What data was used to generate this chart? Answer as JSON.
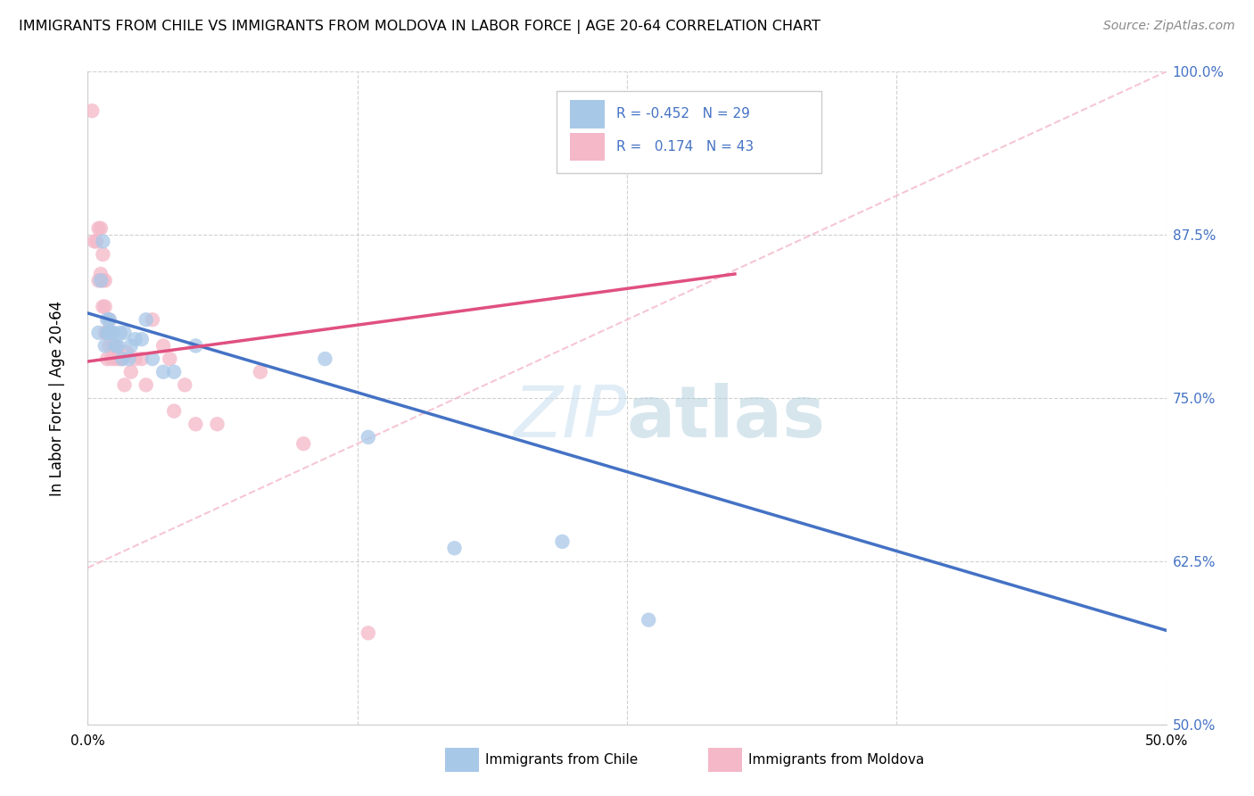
{
  "title": "IMMIGRANTS FROM CHILE VS IMMIGRANTS FROM MOLDOVA IN LABOR FORCE | AGE 20-64 CORRELATION CHART",
  "source": "Source: ZipAtlas.com",
  "ylabel": "In Labor Force | Age 20-64",
  "xlim": [
    0.0,
    0.5
  ],
  "ylim": [
    0.5,
    1.0
  ],
  "ytick_labels": [
    "50.0%",
    "62.5%",
    "75.0%",
    "87.5%",
    "100.0%"
  ],
  "ytick_values": [
    0.5,
    0.625,
    0.75,
    0.875,
    1.0
  ],
  "xtick_labels": [
    "0.0%",
    "",
    "",
    "",
    "50.0%"
  ],
  "xtick_values": [
    0.0,
    0.125,
    0.25,
    0.375,
    0.5
  ],
  "chile_color": "#a8c8e8",
  "moldova_color": "#f4b8c8",
  "chile_line_color": "#4472c4",
  "moldova_line_color": "#e05080",
  "chile_R": -0.452,
  "chile_N": 29,
  "moldova_R": 0.174,
  "moldova_N": 43,
  "legend_color": "#4472c4",
  "right_tick_color": "#4472c4",
  "grid_color": "#cccccc",
  "background_color": "#ffffff",
  "chile_line_x0": 0.0,
  "chile_line_y0": 0.815,
  "chile_line_x1": 0.5,
  "chile_line_y1": 0.572,
  "moldova_line_x0": 0.0,
  "moldova_line_y0": 0.778,
  "moldova_line_x1": 0.3,
  "moldova_line_y1": 0.845,
  "dash_line_x0": 0.0,
  "dash_line_y0": 0.62,
  "dash_line_x1": 0.5,
  "dash_line_y1": 1.0,
  "chile_points_x": [
    0.005,
    0.006,
    0.007,
    0.008,
    0.009,
    0.009,
    0.01,
    0.01,
    0.011,
    0.012,
    0.013,
    0.014,
    0.015,
    0.016,
    0.017,
    0.019,
    0.02,
    0.022,
    0.025,
    0.027,
    0.03,
    0.035,
    0.04,
    0.05,
    0.11,
    0.13,
    0.17,
    0.22,
    0.26
  ],
  "chile_points_y": [
    0.8,
    0.84,
    0.87,
    0.79,
    0.8,
    0.81,
    0.8,
    0.81,
    0.8,
    0.8,
    0.79,
    0.79,
    0.8,
    0.78,
    0.8,
    0.78,
    0.79,
    0.795,
    0.795,
    0.81,
    0.78,
    0.77,
    0.77,
    0.79,
    0.78,
    0.72,
    0.635,
    0.64,
    0.58
  ],
  "moldova_points_x": [
    0.002,
    0.003,
    0.004,
    0.005,
    0.005,
    0.006,
    0.006,
    0.007,
    0.007,
    0.007,
    0.008,
    0.008,
    0.008,
    0.009,
    0.009,
    0.009,
    0.01,
    0.01,
    0.01,
    0.011,
    0.011,
    0.012,
    0.013,
    0.013,
    0.014,
    0.015,
    0.016,
    0.017,
    0.018,
    0.02,
    0.022,
    0.025,
    0.027,
    0.03,
    0.035,
    0.038,
    0.04,
    0.045,
    0.05,
    0.06,
    0.08,
    0.1,
    0.13
  ],
  "moldova_points_y": [
    0.97,
    0.87,
    0.87,
    0.84,
    0.88,
    0.88,
    0.845,
    0.86,
    0.84,
    0.82,
    0.84,
    0.82,
    0.8,
    0.8,
    0.8,
    0.78,
    0.81,
    0.8,
    0.79,
    0.8,
    0.78,
    0.79,
    0.79,
    0.78,
    0.785,
    0.78,
    0.78,
    0.76,
    0.785,
    0.77,
    0.78,
    0.78,
    0.76,
    0.81,
    0.79,
    0.78,
    0.74,
    0.76,
    0.73,
    0.73,
    0.77,
    0.715,
    0.57
  ]
}
